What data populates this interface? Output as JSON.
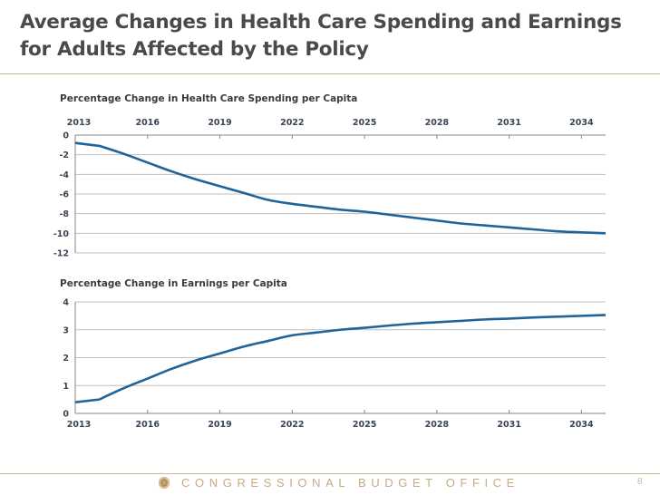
{
  "slide": {
    "title": "Average Changes in Health Care Spending and Earnings for Adults Affected by the Policy",
    "footer_org": "CONGRESSIONAL BUDGET OFFICE",
    "footer_logo_icon": "cbo-seal-icon",
    "page_number": "8",
    "colors": {
      "series": "#1f6399",
      "title": "#4a4a4c",
      "accent": "#c9b99a"
    }
  },
  "chart_data": [
    {
      "type": "line",
      "title": "Percentage Change in Health Care Spending per Capita",
      "xlabel": "",
      "ylabel": "",
      "x_axis_position": "top",
      "x": [
        2013,
        2014,
        2015,
        2016,
        2017,
        2018,
        2019,
        2020,
        2021,
        2022,
        2023,
        2024,
        2025,
        2026,
        2027,
        2028,
        2029,
        2030,
        2031,
        2032,
        2033,
        2034,
        2035
      ],
      "x_ticks": [
        "2013",
        "2016",
        "2019",
        "2022",
        "2025",
        "2028",
        "2031",
        "2034"
      ],
      "y_ticks": [
        "0",
        "-2",
        "-4",
        "-6",
        "-8",
        "-10",
        "-12"
      ],
      "ylim": [
        -12,
        0
      ],
      "grid": true,
      "series": [
        {
          "name": "Health Care Spending per Capita",
          "values": [
            -0.8,
            -1.1,
            -1.9,
            -2.8,
            -3.7,
            -4.5,
            -5.2,
            -5.9,
            -6.6,
            -7.0,
            -7.3,
            -7.6,
            -7.8,
            -8.1,
            -8.4,
            -8.7,
            -9.0,
            -9.2,
            -9.4,
            -9.6,
            -9.8,
            -9.9,
            -10.0
          ]
        }
      ]
    },
    {
      "type": "line",
      "title": "Percentage Change in Earnings per Capita",
      "xlabel": "",
      "ylabel": "",
      "x_axis_position": "bottom",
      "x": [
        2013,
        2014,
        2015,
        2016,
        2017,
        2018,
        2019,
        2020,
        2021,
        2022,
        2023,
        2024,
        2025,
        2026,
        2027,
        2028,
        2029,
        2030,
        2031,
        2032,
        2033,
        2034,
        2035
      ],
      "x_ticks": [
        "2013",
        "2016",
        "2019",
        "2022",
        "2025",
        "2028",
        "2031",
        "2034"
      ],
      "y_ticks": [
        "4",
        "3",
        "2",
        "1",
        "0"
      ],
      "ylim": [
        0,
        4
      ],
      "grid": true,
      "series": [
        {
          "name": "Earnings per Capita",
          "values": [
            0.4,
            0.5,
            0.9,
            1.25,
            1.6,
            1.9,
            2.15,
            2.4,
            2.6,
            2.8,
            2.9,
            3.0,
            3.07,
            3.15,
            3.22,
            3.27,
            3.32,
            3.37,
            3.4,
            3.44,
            3.47,
            3.5,
            3.53
          ]
        }
      ]
    }
  ]
}
